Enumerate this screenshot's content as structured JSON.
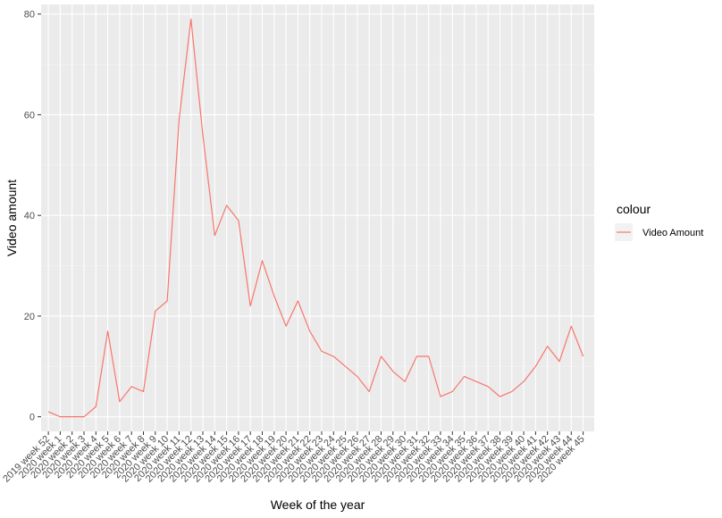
{
  "chart_data": {
    "type": "line",
    "xlabel": "Week of the year",
    "ylabel": "Video amount",
    "ylim": [
      -2.9,
      81.9
    ],
    "yticks": [
      0,
      20,
      40,
      60,
      80
    ],
    "grid": true,
    "legend": {
      "title": "colour",
      "position": "right"
    },
    "categories": [
      "2019 week 52",
      "2020 week 1",
      "2020 week 2",
      "2020 week 3",
      "2020 week 4",
      "2020 week 5",
      "2020 week 6",
      "2020 week 7",
      "2020 week 8",
      "2020 week 9",
      "2020 week 10",
      "2020 week 11",
      "2020 week 12",
      "2020 week 13",
      "2020 week 14",
      "2020 week 15",
      "2020 week 16",
      "2020 week 17",
      "2020 week 18",
      "2020 week 19",
      "2020 week 20",
      "2020 week 21",
      "2020 week 22",
      "2020 week 23",
      "2020 week 24",
      "2020 week 25",
      "2020 week 26",
      "2020 week 27",
      "2020 week 28",
      "2020 week 29",
      "2020 week 30",
      "2020 week 31",
      "2020 week 32",
      "2020 week 33",
      "2020 week 34",
      "2020 week 35",
      "2020 week 36",
      "2020 week 37",
      "2020 week 38",
      "2020 week 39",
      "2020 week 40",
      "2020 week 41",
      "2020 week 42",
      "2020 week 43",
      "2020 week 44",
      "2020 week 45"
    ],
    "series": [
      {
        "name": "Video Amount",
        "color": "#F8766D",
        "values": [
          1,
          0,
          0,
          0,
          2,
          17,
          3,
          6,
          5,
          21,
          23,
          59,
          79,
          56,
          36,
          42,
          39,
          22,
          31,
          24,
          18,
          23,
          17,
          13,
          12,
          10,
          8,
          5,
          12,
          9,
          7,
          12,
          12,
          4,
          5,
          8,
          7,
          6,
          4,
          5,
          7,
          10,
          14,
          11,
          18,
          12
        ]
      }
    ]
  }
}
